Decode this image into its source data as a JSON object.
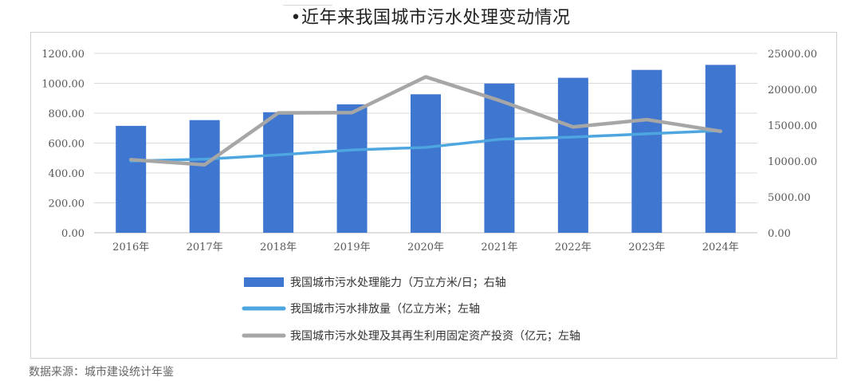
{
  "title": "•近年来我国城市污水处理变动情况",
  "source": "数据来源：城市建设统计年鉴",
  "colors": {
    "bar": "#3f76cf",
    "line_volume": "#4ea6e0",
    "line_invest": "#a6a6a6",
    "grid": "#d9d9d9"
  },
  "chart_data": {
    "type": "bar",
    "categories": [
      "2016年",
      "2017年",
      "2018年",
      "2019年",
      "2020年",
      "2021年",
      "2022年",
      "2023年",
      "2024年"
    ],
    "left_axis": {
      "ylim": [
        0,
        1200
      ],
      "ticks": [
        "0.00",
        "200.00",
        "400.00",
        "600.00",
        "800.00",
        "1000.00",
        "1200.00"
      ]
    },
    "right_axis": {
      "ylim": [
        0,
        25000
      ],
      "ticks": [
        "0.00",
        "5000.00",
        "10000.00",
        "15000.00",
        "20000.00",
        "25000.00"
      ]
    },
    "series": [
      {
        "name": "我国城市污水处理能力（万立方米/日；右轴",
        "kind": "bar",
        "axis": "right",
        "values": [
          14900,
          15700,
          16800,
          17900,
          19300,
          20800,
          21600,
          22700,
          23400
        ]
      },
      {
        "name": "我国城市污水排放量（亿立方米；左轴",
        "kind": "line",
        "axis": "left",
        "values": [
          480,
          492,
          521,
          554,
          571,
          625,
          640,
          662,
          683
        ]
      },
      {
        "name": "我国城市污水处理及其再生利用固定资产投资（亿元；左轴",
        "kind": "line",
        "axis": "left",
        "values": [
          489,
          455,
          802,
          804,
          1043,
          885,
          708,
          757,
          679
        ]
      }
    ],
    "grid": true,
    "legend": "bottom"
  }
}
